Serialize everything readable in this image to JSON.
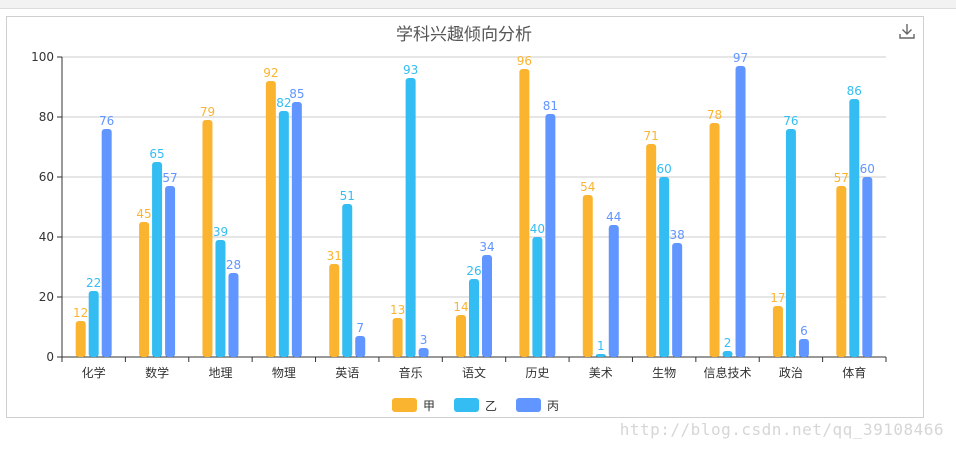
{
  "chart_data": {
    "type": "bar",
    "title": "学科兴趣倾向分析",
    "categories": [
      "化学",
      "数学",
      "地理",
      "物理",
      "英语",
      "音乐",
      "语文",
      "历史",
      "美术",
      "生物",
      "信息技术",
      "政治",
      "体育"
    ],
    "series": [
      {
        "name": "甲",
        "color": "#fbb430",
        "values": [
          12,
          45,
          79,
          92,
          31,
          13,
          14,
          96,
          54,
          71,
          78,
          17,
          57
        ]
      },
      {
        "name": "乙",
        "color": "#33bdf2",
        "values": [
          22,
          65,
          39,
          82,
          51,
          93,
          26,
          40,
          1,
          60,
          2,
          76,
          86
        ]
      },
      {
        "name": "丙",
        "color": "#6195ff",
        "values": [
          76,
          57,
          28,
          85,
          7,
          3,
          34,
          81,
          44,
          38,
          97,
          6,
          60
        ]
      }
    ],
    "ylim": [
      0,
      100
    ],
    "yticks": [
      0,
      20,
      40,
      60,
      80,
      100
    ],
    "xlabel": "",
    "ylabel": "",
    "grid": true,
    "legend": "bottom-center"
  },
  "toolbar": {
    "download_icon": "download-icon"
  },
  "watermark": "http://blog.csdn.net/qq_39108466"
}
